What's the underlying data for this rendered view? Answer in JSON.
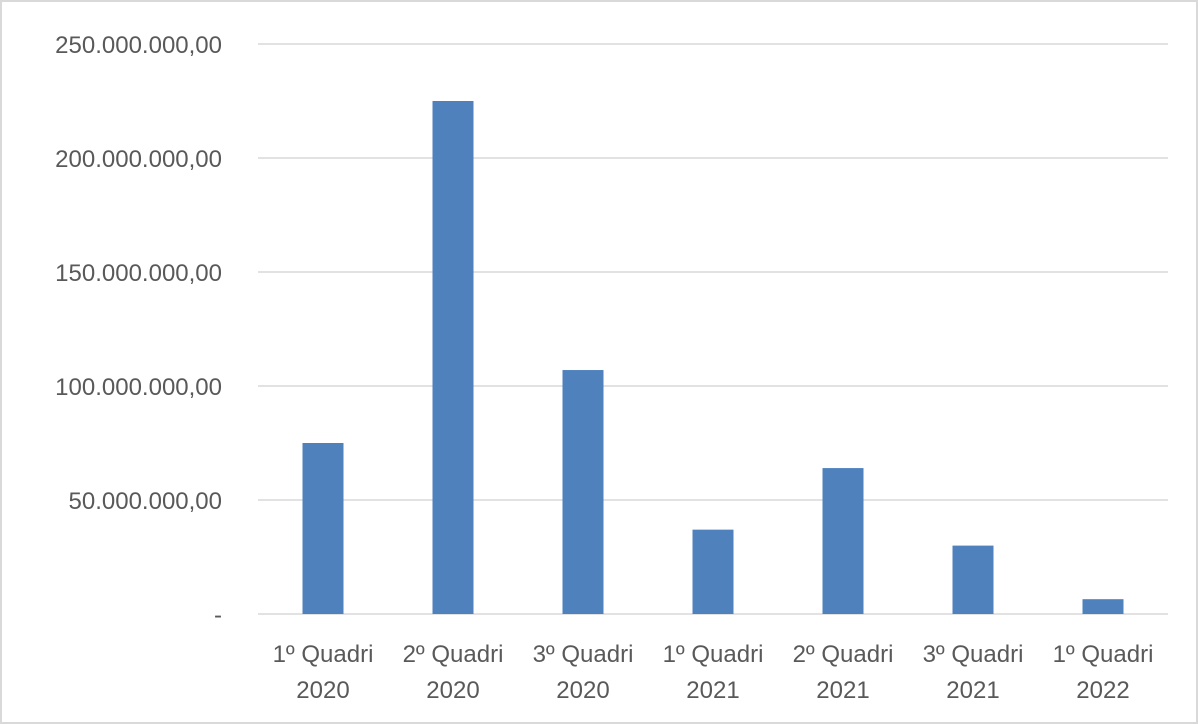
{
  "chart_data": {
    "type": "bar",
    "categories": [
      [
        "1º Quadri",
        "2020"
      ],
      [
        "2º Quadri",
        "2020"
      ],
      [
        "3º Quadri",
        "2020"
      ],
      [
        "1º Quadri",
        "2021"
      ],
      [
        "2º Quadri",
        "2021"
      ],
      [
        "3º Quadri",
        "2021"
      ],
      [
        "1º Quadri",
        "2022"
      ]
    ],
    "series": [
      {
        "values": [
          75000000,
          225000000,
          107000000,
          37000000,
          64000000,
          30000000,
          6500000
        ]
      }
    ],
    "ylim": [
      0,
      250000000
    ],
    "yticks": [
      0,
      50000000,
      100000000,
      150000000,
      200000000,
      250000000
    ],
    "ytick_labels": [
      "-",
      "50.000.000,00",
      "100.000.000,00",
      "150.000.000,00",
      "200.000.000,00",
      "250.000.000,00"
    ],
    "title": "",
    "xlabel": "",
    "ylabel": "",
    "grid": true,
    "legend": "none",
    "colors": {
      "bar": "#4f81bd",
      "grid": "#d9d9d9",
      "text": "#595959",
      "border": "#d9d9d9"
    }
  }
}
